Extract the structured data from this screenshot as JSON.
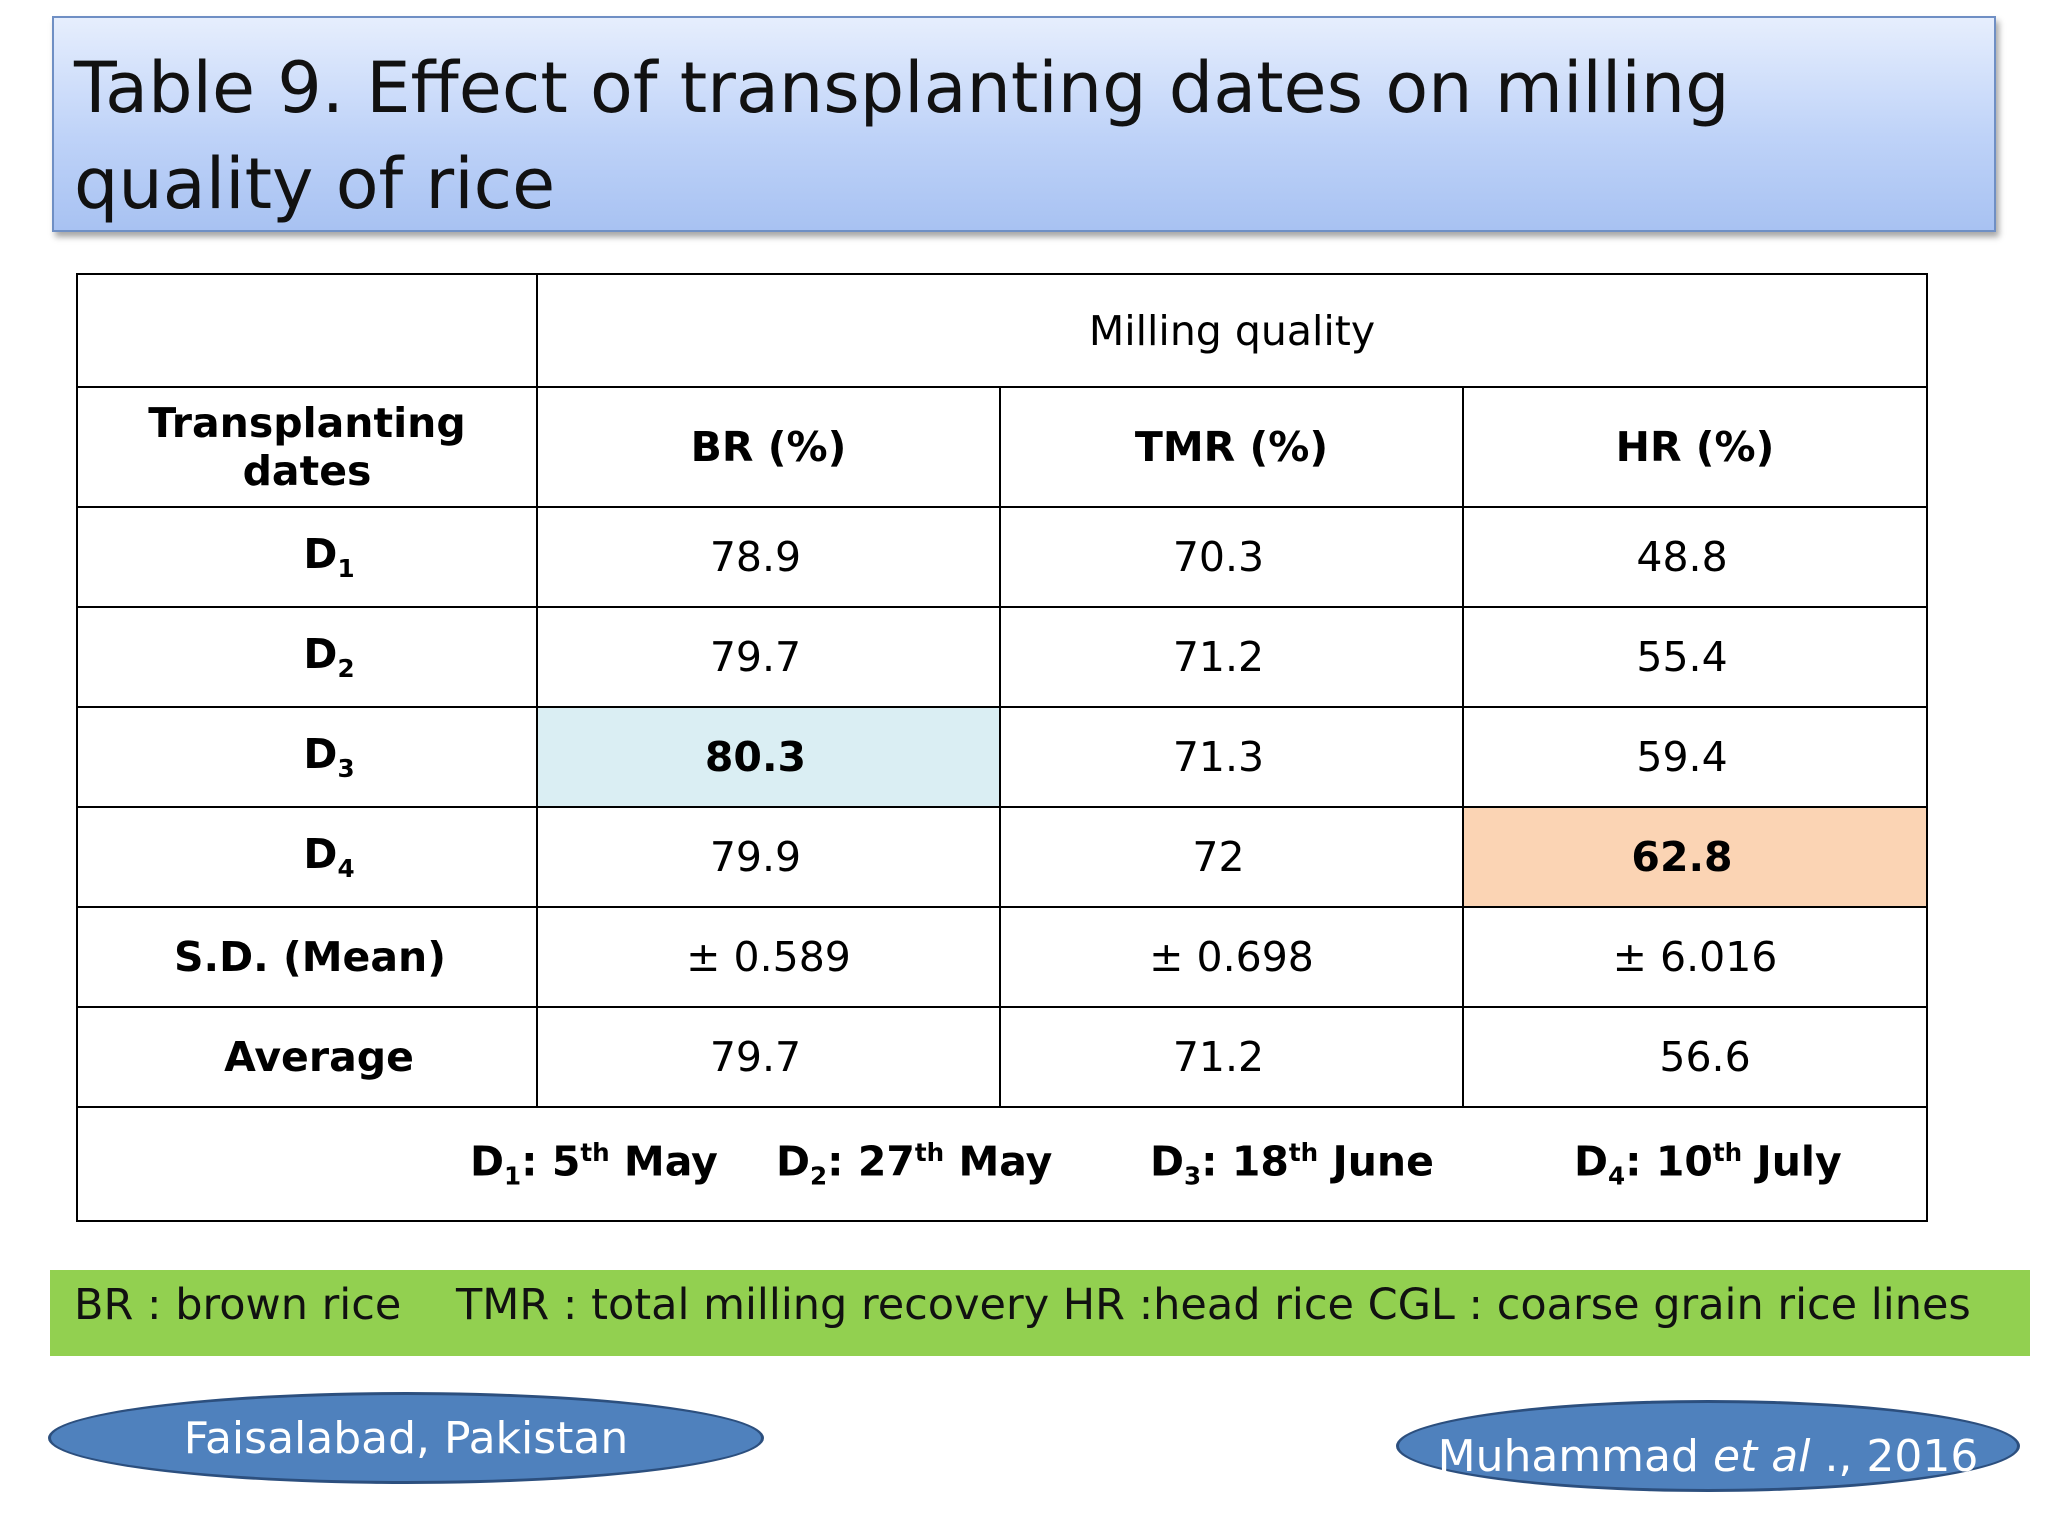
{
  "title": "Table 9. Effect of transplanting dates on milling quality of rice",
  "table": {
    "group_header": "Milling quality",
    "row_header": "Transplanting dates",
    "columns": [
      "BR (%)",
      "TMR (%)",
      "HR (%)"
    ],
    "rows": [
      {
        "label": "D",
        "sub": "1",
        "br": "78.9",
        "tmr": "70.3",
        "hr": "48.8"
      },
      {
        "label": "D",
        "sub": "2",
        "br": "79.7",
        "tmr": "71.2",
        "hr": "55.4"
      },
      {
        "label": "D",
        "sub": "3",
        "br": "80.3",
        "tmr": "71.3",
        "hr": "59.4"
      },
      {
        "label": "D",
        "sub": "4",
        "br": "79.9",
        "tmr": "72",
        "hr": "62.8"
      }
    ],
    "sd": {
      "label": "S.D. (Mean)",
      "br": "± 0.589",
      "tmr": "± 0.698",
      "hr": "± 6.016"
    },
    "average": {
      "label": "Average",
      "br": "79.7",
      "tmr": "71.2",
      "hr": "56.6"
    },
    "highlight_colors": {
      "br_d3": "#daeef3",
      "hr_d4": "#fbd4b4"
    },
    "footnote_dates": [
      {
        "label": "D",
        "sub": "1",
        "day": "5",
        "sup": "th",
        "month": "May"
      },
      {
        "label": "D",
        "sub": "2",
        "day": "27",
        "sup": "th",
        "month": "May"
      },
      {
        "label": "D",
        "sub": "3",
        "day": "18",
        "sup": "th",
        "month": "June"
      },
      {
        "label": "D",
        "sub": "4",
        "day": "10",
        "sup": "th",
        "month": "July"
      }
    ]
  },
  "legend": "BR : brown rice    TMR : total milling recovery HR :head rice CGL : coarse grain rice lines",
  "location": "Faisalabad, Pakistan",
  "citation": {
    "author": "Muhammad",
    "etal": "et al",
    "rest": "., 2016"
  },
  "colors": {
    "title_gradient": "#a8c2f2",
    "legend_bar": "#92d050",
    "pill": "#4f81bd"
  }
}
